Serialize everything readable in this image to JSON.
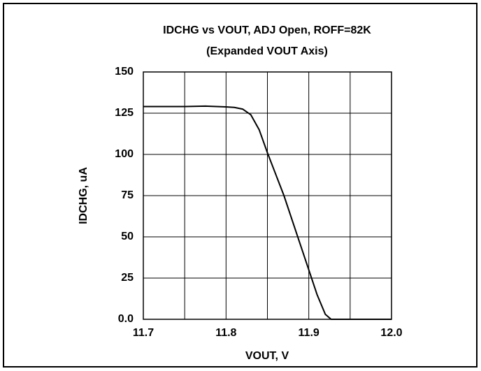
{
  "chart_data": {
    "type": "line",
    "title": "IDCHG vs VOUT, ADJ Open, ROFF=82K",
    "subtitle": "(Expanded VOUT Axis)",
    "x_label": "VOUT, V",
    "y_label": "IDCHG, uA",
    "x": [
      11.7,
      11.75,
      11.775,
      11.8,
      11.81,
      11.82,
      11.83,
      11.84,
      11.85,
      11.86,
      11.87,
      11.88,
      11.89,
      11.9,
      11.91,
      11.92,
      11.927,
      11.95,
      12.0
    ],
    "series": [
      {
        "name": "IDCHG",
        "color": "#000000",
        "values": [
          129,
          129,
          129.3,
          128.8,
          128.5,
          127.5,
          124,
          115,
          101,
          88,
          75,
          60,
          45,
          30,
          15,
          3,
          0,
          0,
          0
        ]
      }
    ],
    "xlim": [
      11.7,
      12.0
    ],
    "xticks": [
      11.7,
      11.8,
      11.9,
      {
        "value": 12,
        "label": "12.0"
      }
    ],
    "x_minor_grid": [
      11.75,
      11.85,
      11.95
    ],
    "ylim": [
      0,
      150
    ],
    "yticks": [
      {
        "value": 0,
        "label": "0.0"
      },
      25,
      50,
      75,
      100,
      125,
      150
    ],
    "grid": true
  }
}
